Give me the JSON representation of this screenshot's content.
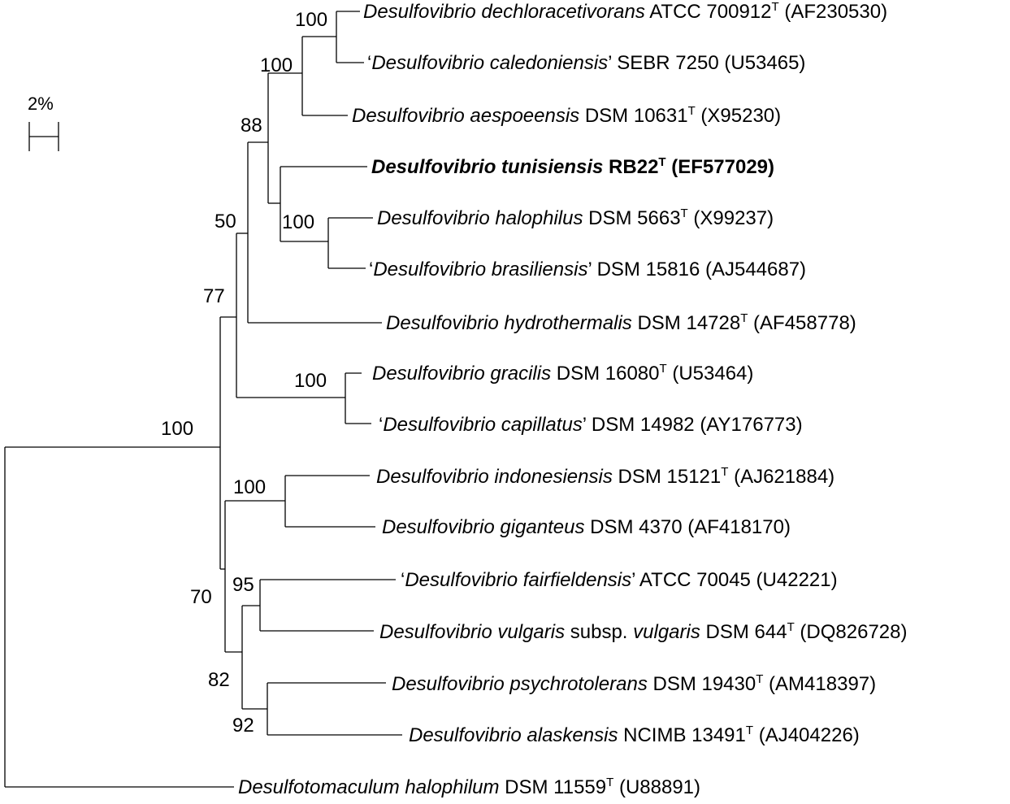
{
  "scale_bar": {
    "label": "2%"
  },
  "leaves": [
    {
      "id": "dechloracetivorans",
      "parts": [
        {
          "t": "Desulfovibrio dechloracetivorans",
          "i": true
        },
        {
          "t": " ATCC 700912"
        },
        {
          "t": "T",
          "sup": true
        },
        {
          "t": " (AF230530)"
        }
      ]
    },
    {
      "id": "caledoniensis",
      "parts": [
        {
          "t": "‘"
        },
        {
          "t": "Desulfovibrio caledoniensis",
          "i": true
        },
        {
          "t": "’ SEBR 7250 (U53465)"
        }
      ]
    },
    {
      "id": "aespoeensis",
      "parts": [
        {
          "t": "Desulfovibrio aespoeensis",
          "i": true
        },
        {
          "t": " DSM 10631"
        },
        {
          "t": "T",
          "sup": true
        },
        {
          "t": " (X95230)"
        }
      ]
    },
    {
      "id": "tunisiensis",
      "bold": true,
      "parts": [
        {
          "t": "Desulfovibrio tunisiensis",
          "i": true
        },
        {
          "t": " RB22"
        },
        {
          "t": "T",
          "sup": true
        },
        {
          "t": " (EF577029)"
        }
      ]
    },
    {
      "id": "halophilus",
      "parts": [
        {
          "t": "Desulfovibrio halophilus",
          "i": true
        },
        {
          "t": " DSM 5663"
        },
        {
          "t": "T",
          "sup": true
        },
        {
          "t": " (X99237)"
        }
      ]
    },
    {
      "id": "brasiliensis",
      "parts": [
        {
          "t": "‘"
        },
        {
          "t": "Desulfovibrio brasiliensis",
          "i": true
        },
        {
          "t": "’ DSM 15816 (AJ544687)"
        }
      ]
    },
    {
      "id": "hydrothermalis",
      "parts": [
        {
          "t": "Desulfovibrio hydrothermalis",
          "i": true
        },
        {
          "t": " DSM 14728"
        },
        {
          "t": "T",
          "sup": true
        },
        {
          "t": " (AF458778)"
        }
      ]
    },
    {
      "id": "gracilis",
      "parts": [
        {
          "t": "Desulfovibrio gracilis",
          "i": true
        },
        {
          "t": " DSM 16080"
        },
        {
          "t": "T",
          "sup": true
        },
        {
          "t": " (U53464)"
        }
      ]
    },
    {
      "id": "capillatus",
      "parts": [
        {
          "t": "‘"
        },
        {
          "t": "Desulfovibrio capillatus",
          "i": true
        },
        {
          "t": "’ DSM 14982 (AY176773)"
        }
      ]
    },
    {
      "id": "indonesiensis",
      "parts": [
        {
          "t": "Desulfovibrio indonesiensis",
          "i": true
        },
        {
          "t": " DSM 15121"
        },
        {
          "t": "T",
          "sup": true
        },
        {
          "t": " (AJ621884)"
        }
      ]
    },
    {
      "id": "giganteus",
      "parts": [
        {
          "t": "Desulfovibrio giganteus",
          "i": true
        },
        {
          "t": " DSM 4370 (AF418170)"
        }
      ]
    },
    {
      "id": "fairfieldensis",
      "parts": [
        {
          "t": "‘"
        },
        {
          "t": "Desulfovibrio fairfieldensis",
          "i": true
        },
        {
          "t": "’ ATCC 70045 (U42221)"
        }
      ]
    },
    {
      "id": "vulgaris",
      "parts": [
        {
          "t": "Desulfovibrio vulgaris",
          "i": true
        },
        {
          "t": " subsp. "
        },
        {
          "t": "vulgaris",
          "i": true
        },
        {
          "t": " DSM 644"
        },
        {
          "t": "T",
          "sup": true
        },
        {
          "t": " (DQ826728)"
        }
      ]
    },
    {
      "id": "psychrotolerans",
      "parts": [
        {
          "t": "Desulfovibrio psychrotolerans",
          "i": true
        },
        {
          "t": " DSM 19430"
        },
        {
          "t": "T",
          "sup": true
        },
        {
          "t": " (AM418397)"
        }
      ]
    },
    {
      "id": "alaskensis",
      "parts": [
        {
          "t": "Desulfovibrio alaskensis",
          "i": true
        },
        {
          "t": "  NCIMB 13491"
        },
        {
          "t": "T",
          "sup": true
        },
        {
          "t": " (AJ404226)"
        }
      ]
    },
    {
      "id": "halophilum",
      "parts": [
        {
          "t": "Desulfotomaculum halophilum",
          "i": true
        },
        {
          "t": " DSM 11559"
        },
        {
          "t": "T",
          "sup": true
        },
        {
          "t": " (U88891)"
        }
      ]
    }
  ],
  "bootstrap": [
    {
      "node": "n1",
      "value": "100"
    },
    {
      "node": "n2",
      "value": "100"
    },
    {
      "node": "n3",
      "value": "88"
    },
    {
      "node": "n4",
      "value": "100"
    },
    {
      "node": "n5",
      "value": "50"
    },
    {
      "node": "n6",
      "value": "100"
    },
    {
      "node": "n7",
      "value": "77"
    },
    {
      "node": "n8",
      "value": "100"
    },
    {
      "node": "n9",
      "value": "100"
    },
    {
      "node": "n10",
      "value": "95"
    },
    {
      "node": "n11",
      "value": "92"
    },
    {
      "node": "n12",
      "value": "82"
    },
    {
      "node": "n13",
      "value": "70"
    }
  ]
}
